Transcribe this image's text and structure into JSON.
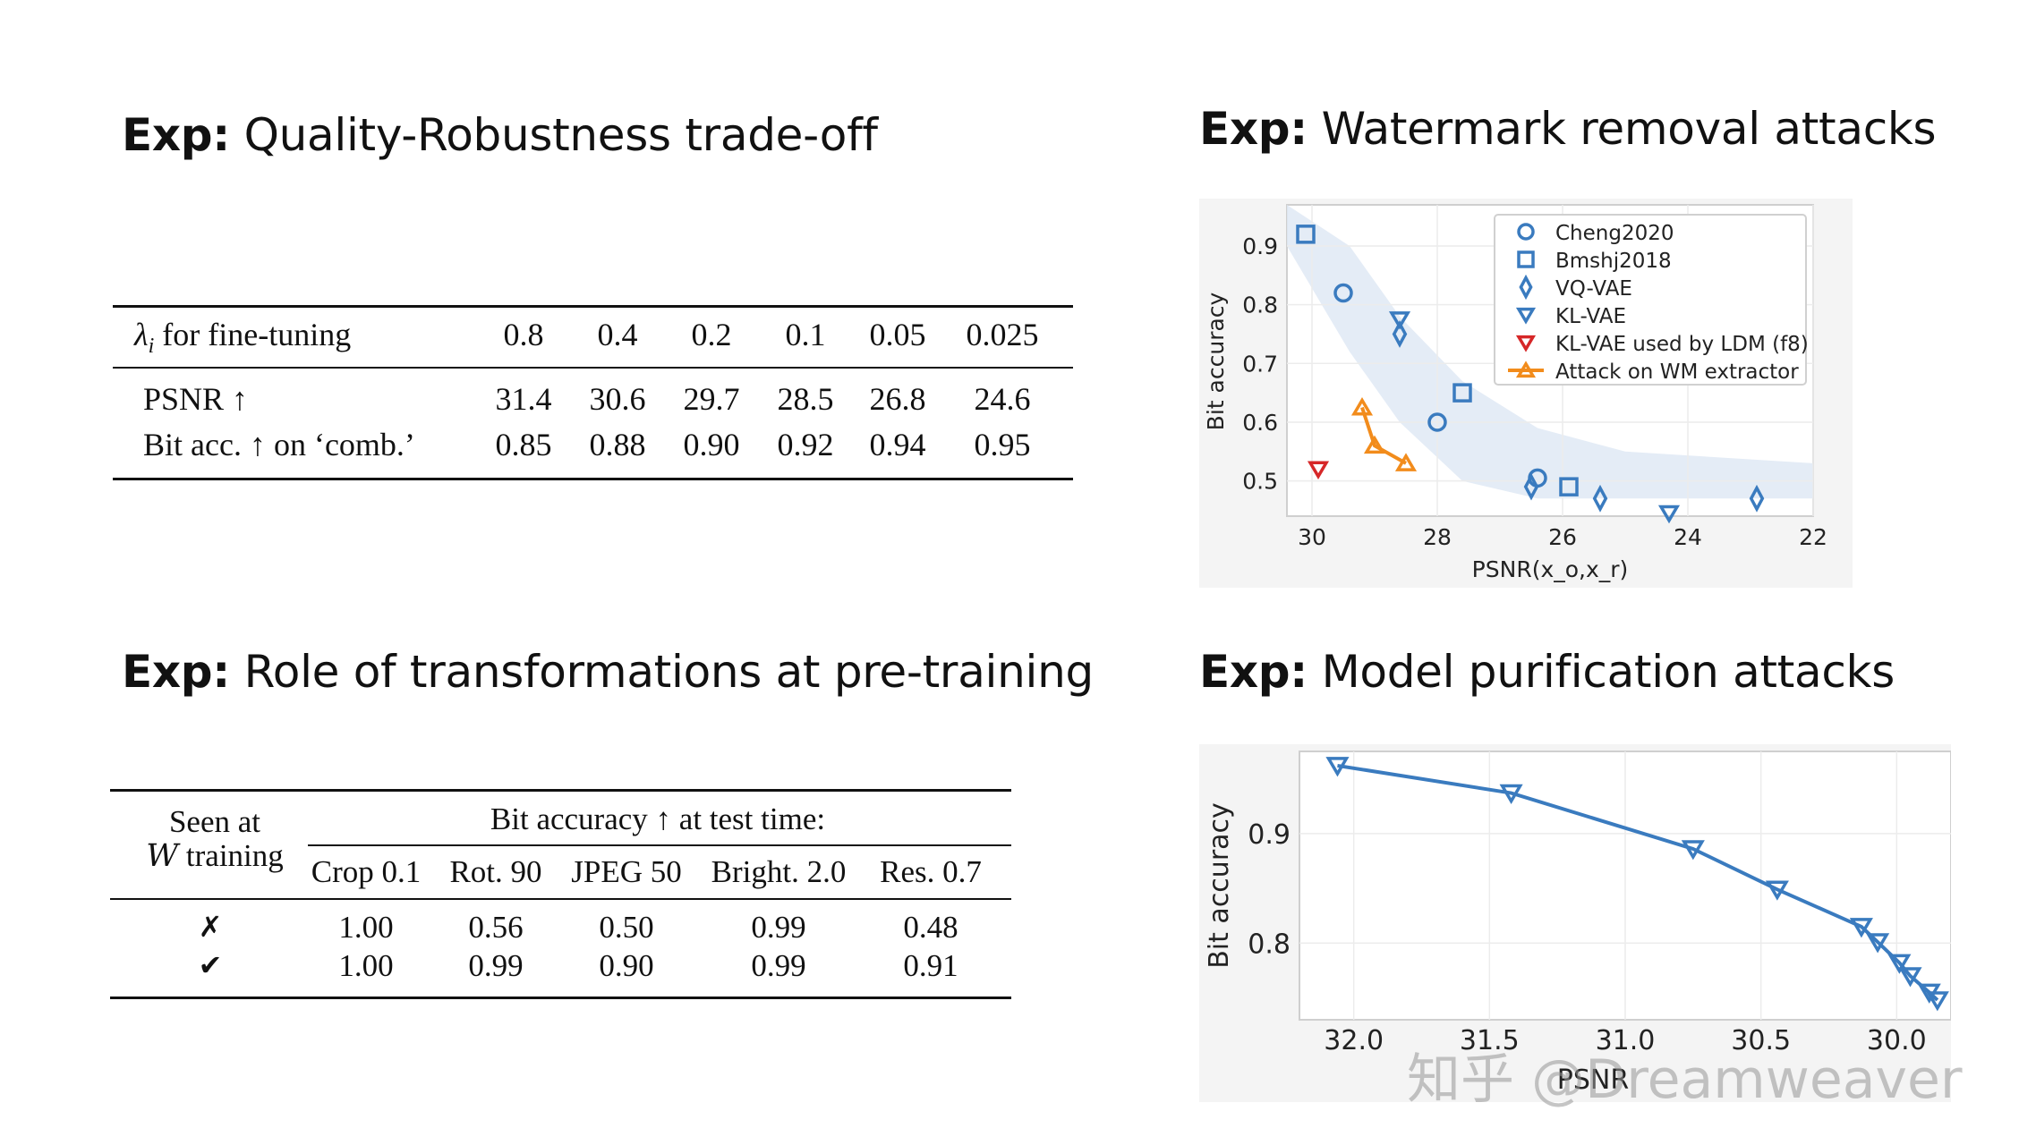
{
  "headings": {
    "h1": {
      "bold": "Exp:",
      "text": "Quality-Robustness trade-off"
    },
    "h2": {
      "bold": "Exp:",
      "text": "Watermark removal attacks"
    },
    "h3": {
      "bold": "Exp:",
      "text": "Role of transformations at pre-training"
    },
    "h4": {
      "bold": "Exp:",
      "text": "Model purification attacks"
    }
  },
  "table1": {
    "header_label": "for fine-tuning",
    "lambda_symbol": "λ",
    "lambda_sub": "i",
    "columns": [
      "0.8",
      "0.4",
      "0.2",
      "0.1",
      "0.05",
      "0.025"
    ],
    "rows": [
      {
        "label": "PSNR ↑",
        "values": [
          "31.4",
          "30.6",
          "29.7",
          "28.5",
          "26.8",
          "24.6"
        ]
      },
      {
        "label": "Bit acc. ↑ on ‘comb.’",
        "values": [
          "0.85",
          "0.88",
          "0.90",
          "0.92",
          "0.94",
          "0.95"
        ]
      }
    ]
  },
  "table2": {
    "seen_line1": "Seen at",
    "seen_line2_symbol": "W",
    "seen_line2": "training",
    "group_header": "Bit accuracy ↑ at test time:",
    "columns": [
      "Crop 0.1",
      "Rot. 90",
      "JPEG 50",
      "Bright. 2.0",
      "Res. 0.7"
    ],
    "rows": [
      {
        "mark": "✗",
        "values": [
          "1.00",
          "0.56",
          "0.50",
          "0.99",
          "0.48"
        ]
      },
      {
        "mark": "✔",
        "values": [
          "1.00",
          "0.99",
          "0.90",
          "0.99",
          "0.91"
        ]
      }
    ]
  },
  "chart_data": [
    {
      "type": "scatter",
      "xlabel": "PSNR(x_o,x_r)",
      "ylabel": "Bit accuracy",
      "xlim": [
        30.4,
        22
      ],
      "ylim": [
        0.44,
        0.97
      ],
      "x_inverted": true,
      "xticks": [
        30,
        28,
        26,
        24,
        22
      ],
      "yticks": [
        0.5,
        0.6,
        0.7,
        0.8,
        0.9
      ],
      "grid": true,
      "legend_position": "top-right",
      "series": [
        {
          "name": "Cheng2020",
          "marker": "circle",
          "color": "#3a7bbf",
          "points": [
            [
              29.5,
              0.82
            ],
            [
              28.0,
              0.6
            ],
            [
              26.4,
              0.505
            ]
          ]
        },
        {
          "name": "Bmshj2018",
          "marker": "square",
          "color": "#3a7bbf",
          "points": [
            [
              30.1,
              0.92
            ],
            [
              27.6,
              0.65
            ],
            [
              25.9,
              0.49
            ]
          ]
        },
        {
          "name": "VQ-VAE",
          "marker": "diamond",
          "color": "#3a7bbf",
          "points": [
            [
              28.6,
              0.75
            ],
            [
              26.5,
              0.49
            ],
            [
              25.4,
              0.47
            ],
            [
              22.9,
              0.47
            ]
          ]
        },
        {
          "name": "KL-VAE",
          "marker": "triangle-down",
          "color": "#3a7bbf",
          "points": [
            [
              28.6,
              0.775
            ],
            [
              24.3,
              0.445
            ]
          ]
        },
        {
          "name": "KL-VAE used by LDM (f8)",
          "marker": "triangle-down",
          "color": "#d62728",
          "points": [
            [
              29.9,
              0.52
            ]
          ]
        },
        {
          "name": "Attack on WM extractor",
          "marker": "triangle-up-line",
          "color": "#f28c1c",
          "points": [
            [
              29.2,
              0.625
            ],
            [
              29.0,
              0.56
            ],
            [
              28.5,
              0.53
            ]
          ]
        }
      ]
    },
    {
      "type": "line",
      "xlabel": "PSNR",
      "ylabel": "Bit accuracy",
      "xlim": [
        32.2,
        29.8
      ],
      "ylim": [
        0.73,
        0.975
      ],
      "x_inverted": true,
      "xticks": [
        "32.0",
        "31.5",
        "31.0",
        "30.5",
        "30.0"
      ],
      "yticks": [
        "0.8",
        "0.9"
      ],
      "grid": true,
      "series": [
        {
          "marker": "triangle-down",
          "color": "#3a7bbf",
          "x": [
            32.06,
            31.42,
            30.75,
            30.44,
            30.13,
            30.07,
            29.99,
            29.95,
            29.88,
            29.85
          ],
          "y": [
            0.962,
            0.937,
            0.886,
            0.849,
            0.815,
            0.801,
            0.782,
            0.77,
            0.755,
            0.748
          ]
        }
      ]
    }
  ],
  "watermark": "知乎 @Dreamweaver"
}
